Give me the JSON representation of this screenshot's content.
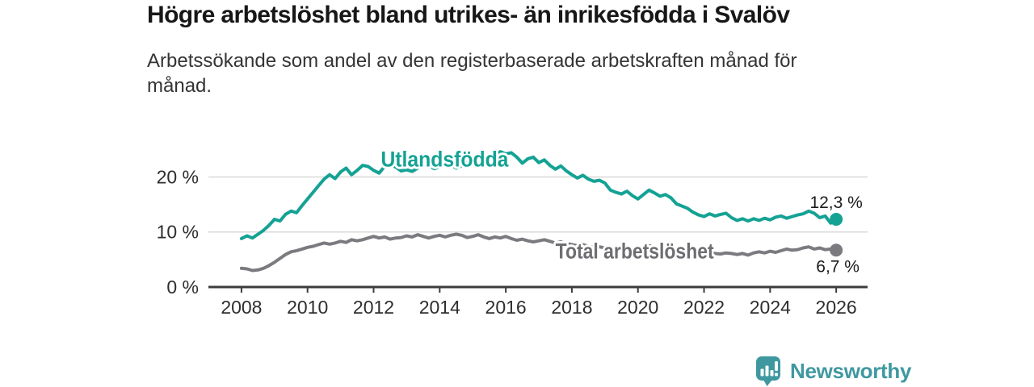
{
  "header": {
    "title": "Högre arbetslöshet bland utrikes- än inrikesfödda i Svalöv",
    "subtitle": "Arbetssökande som andel av den registerbaserade arbetskraften månad för månad."
  },
  "branding": {
    "name": "Newsworthy",
    "icon": "bar-chart-speech-bubble-icon",
    "color": "#3f98a0"
  },
  "colors": {
    "background": "#ffffff",
    "axis": "#3c3c3c",
    "grid": "#d9d9d9",
    "tick_text": "#2e2e2e",
    "annotation_text": "#1c1c1c",
    "teal": "#14a294",
    "gray_line": "#7b7b7f",
    "gray_label": "#6d6d72"
  },
  "chart_data": {
    "type": "line",
    "title": "Högre arbetslöshet bland utrikes- än inrikesfödda i Svalöv",
    "xlabel": "",
    "ylabel": "",
    "grid": "horizontal",
    "legend_position": "inline-labels",
    "x_axis": {
      "ticks": [
        2008,
        2010,
        2012,
        2014,
        2016,
        2018,
        2020,
        2022,
        2024,
        2026
      ],
      "lim": [
        2007.0,
        2026.95
      ]
    },
    "y_axis": {
      "ticks": [
        0,
        10,
        20
      ],
      "tick_labels": [
        "0 %",
        "10 %",
        "20 %"
      ],
      "lim": [
        0,
        26
      ]
    },
    "series": [
      {
        "name": "Utlandsfödda",
        "color": "#14a294",
        "start_year": 2008,
        "points_per_year": 6,
        "end_value": 12.3,
        "end_label": "12,3 %",
        "end_label_offset": {
          "dx": 0,
          "dy": -14
        },
        "inline_label": {
          "year": 2014.15,
          "value": 21.9,
          "text_length": 158
        },
        "values": [
          8.8,
          9.3,
          8.9,
          9.6,
          10.3,
          11.2,
          12.3,
          12.0,
          13.2,
          13.8,
          13.5,
          14.8,
          16.0,
          17.2,
          18.4,
          19.6,
          20.4,
          19.7,
          20.9,
          21.6,
          20.4,
          21.2,
          22.1,
          21.9,
          21.2,
          20.7,
          21.9,
          22.3,
          21.8,
          21.1,
          21.3,
          21.0,
          21.6,
          22.4,
          22.1,
          21.5,
          21.8,
          22.5,
          22.2,
          21.6,
          22.0,
          22.6,
          22.4,
          22.0,
          22.7,
          23.3,
          23.8,
          24.6,
          24.2,
          24.4,
          23.6,
          22.5,
          23.3,
          23.6,
          22.6,
          23.1,
          22.1,
          21.4,
          22.0,
          21.1,
          20.4,
          19.8,
          20.3,
          19.6,
          19.2,
          19.4,
          18.9,
          17.6,
          17.2,
          16.9,
          17.4,
          16.6,
          16.0,
          16.8,
          17.6,
          17.1,
          16.5,
          16.8,
          16.2,
          15.1,
          14.7,
          14.3,
          13.6,
          13.1,
          12.8,
          13.3,
          12.9,
          13.2,
          13.4,
          12.6,
          12.1,
          12.4,
          12.0,
          12.4,
          12.1,
          12.5,
          12.2,
          12.7,
          12.9,
          12.5,
          12.8,
          13.1,
          13.3,
          13.8,
          13.4,
          12.6,
          12.9,
          11.6,
          12.3
        ]
      },
      {
        "name": "Total arbetslöshet",
        "color": "#7b7b7f",
        "label_color": "#6d6d72",
        "start_year": 2008,
        "points_per_year": 6,
        "end_value": 6.7,
        "end_label": "6,7 %",
        "end_label_offset": {
          "dx": 2,
          "dy": 27
        },
        "inline_label": {
          "year": 2019.9,
          "value": 5.2,
          "text_length": 196
        },
        "values": [
          3.4,
          3.3,
          3.0,
          3.1,
          3.4,
          3.9,
          4.5,
          5.2,
          5.9,
          6.4,
          6.6,
          6.9,
          7.2,
          7.4,
          7.7,
          8.0,
          7.8,
          8.0,
          8.3,
          8.1,
          8.6,
          8.4,
          8.6,
          8.9,
          9.2,
          8.9,
          9.1,
          8.7,
          8.9,
          9.0,
          9.3,
          9.1,
          9.5,
          9.2,
          8.9,
          9.2,
          9.4,
          9.1,
          9.4,
          9.6,
          9.4,
          9.0,
          9.2,
          9.5,
          9.1,
          8.8,
          9.1,
          8.9,
          9.2,
          8.8,
          8.5,
          8.7,
          8.4,
          8.2,
          8.4,
          8.6,
          8.3,
          8.0,
          8.2,
          7.9,
          7.7,
          7.5,
          7.7,
          7.4,
          7.2,
          7.3,
          7.1,
          6.9,
          7.0,
          6.8,
          6.9,
          7.0,
          6.9,
          7.2,
          7.5,
          7.3,
          7.1,
          7.0,
          6.9,
          6.7,
          6.6,
          6.4,
          6.3,
          6.2,
          6.2,
          6.3,
          6.1,
          6.0,
          6.2,
          6.1,
          5.9,
          6.1,
          5.8,
          6.2,
          6.4,
          6.2,
          6.5,
          6.3,
          6.6,
          6.9,
          6.7,
          6.8,
          7.1,
          7.3,
          6.9,
          7.1,
          6.8,
          6.9,
          6.7
        ]
      }
    ]
  }
}
